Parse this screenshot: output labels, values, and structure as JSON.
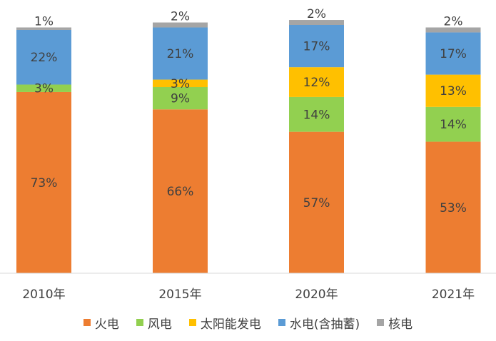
{
  "chart_data": {
    "type": "bar",
    "stacked": true,
    "categories": [
      "2010年",
      "2015年",
      "2020年",
      "2021年"
    ],
    "series": [
      {
        "name": "火电",
        "color": "#ED7D31",
        "values": [
          73,
          66,
          57,
          53
        ]
      },
      {
        "name": "风电",
        "color": "#92D050",
        "values": [
          3,
          9,
          14,
          14
        ]
      },
      {
        "name": "太阳能发电",
        "color": "#FFC000",
        "values": [
          null,
          3,
          12,
          13
        ]
      },
      {
        "name": "水电(含抽蓄)",
        "color": "#5B9BD5",
        "values": [
          22,
          21,
          17,
          17
        ]
      },
      {
        "name": "核电",
        "color": "#A5A5A5",
        "values": [
          1,
          2,
          2,
          2
        ]
      }
    ],
    "data_labels": [
      [
        "73%",
        "3%",
        "",
        "22%",
        "1%"
      ],
      [
        "66%",
        "9%",
        "3%",
        "21%",
        "2%"
      ],
      [
        "57%",
        "14%",
        "12%",
        "17%",
        "2%"
      ],
      [
        "53%",
        "14%",
        "13%",
        "17%",
        "2%"
      ]
    ],
    "ylim": [
      0,
      100
    ],
    "grid": false,
    "legend_position": "bottom",
    "colors": {
      "axis": "#D9D9D9",
      "text": "#404040"
    }
  }
}
